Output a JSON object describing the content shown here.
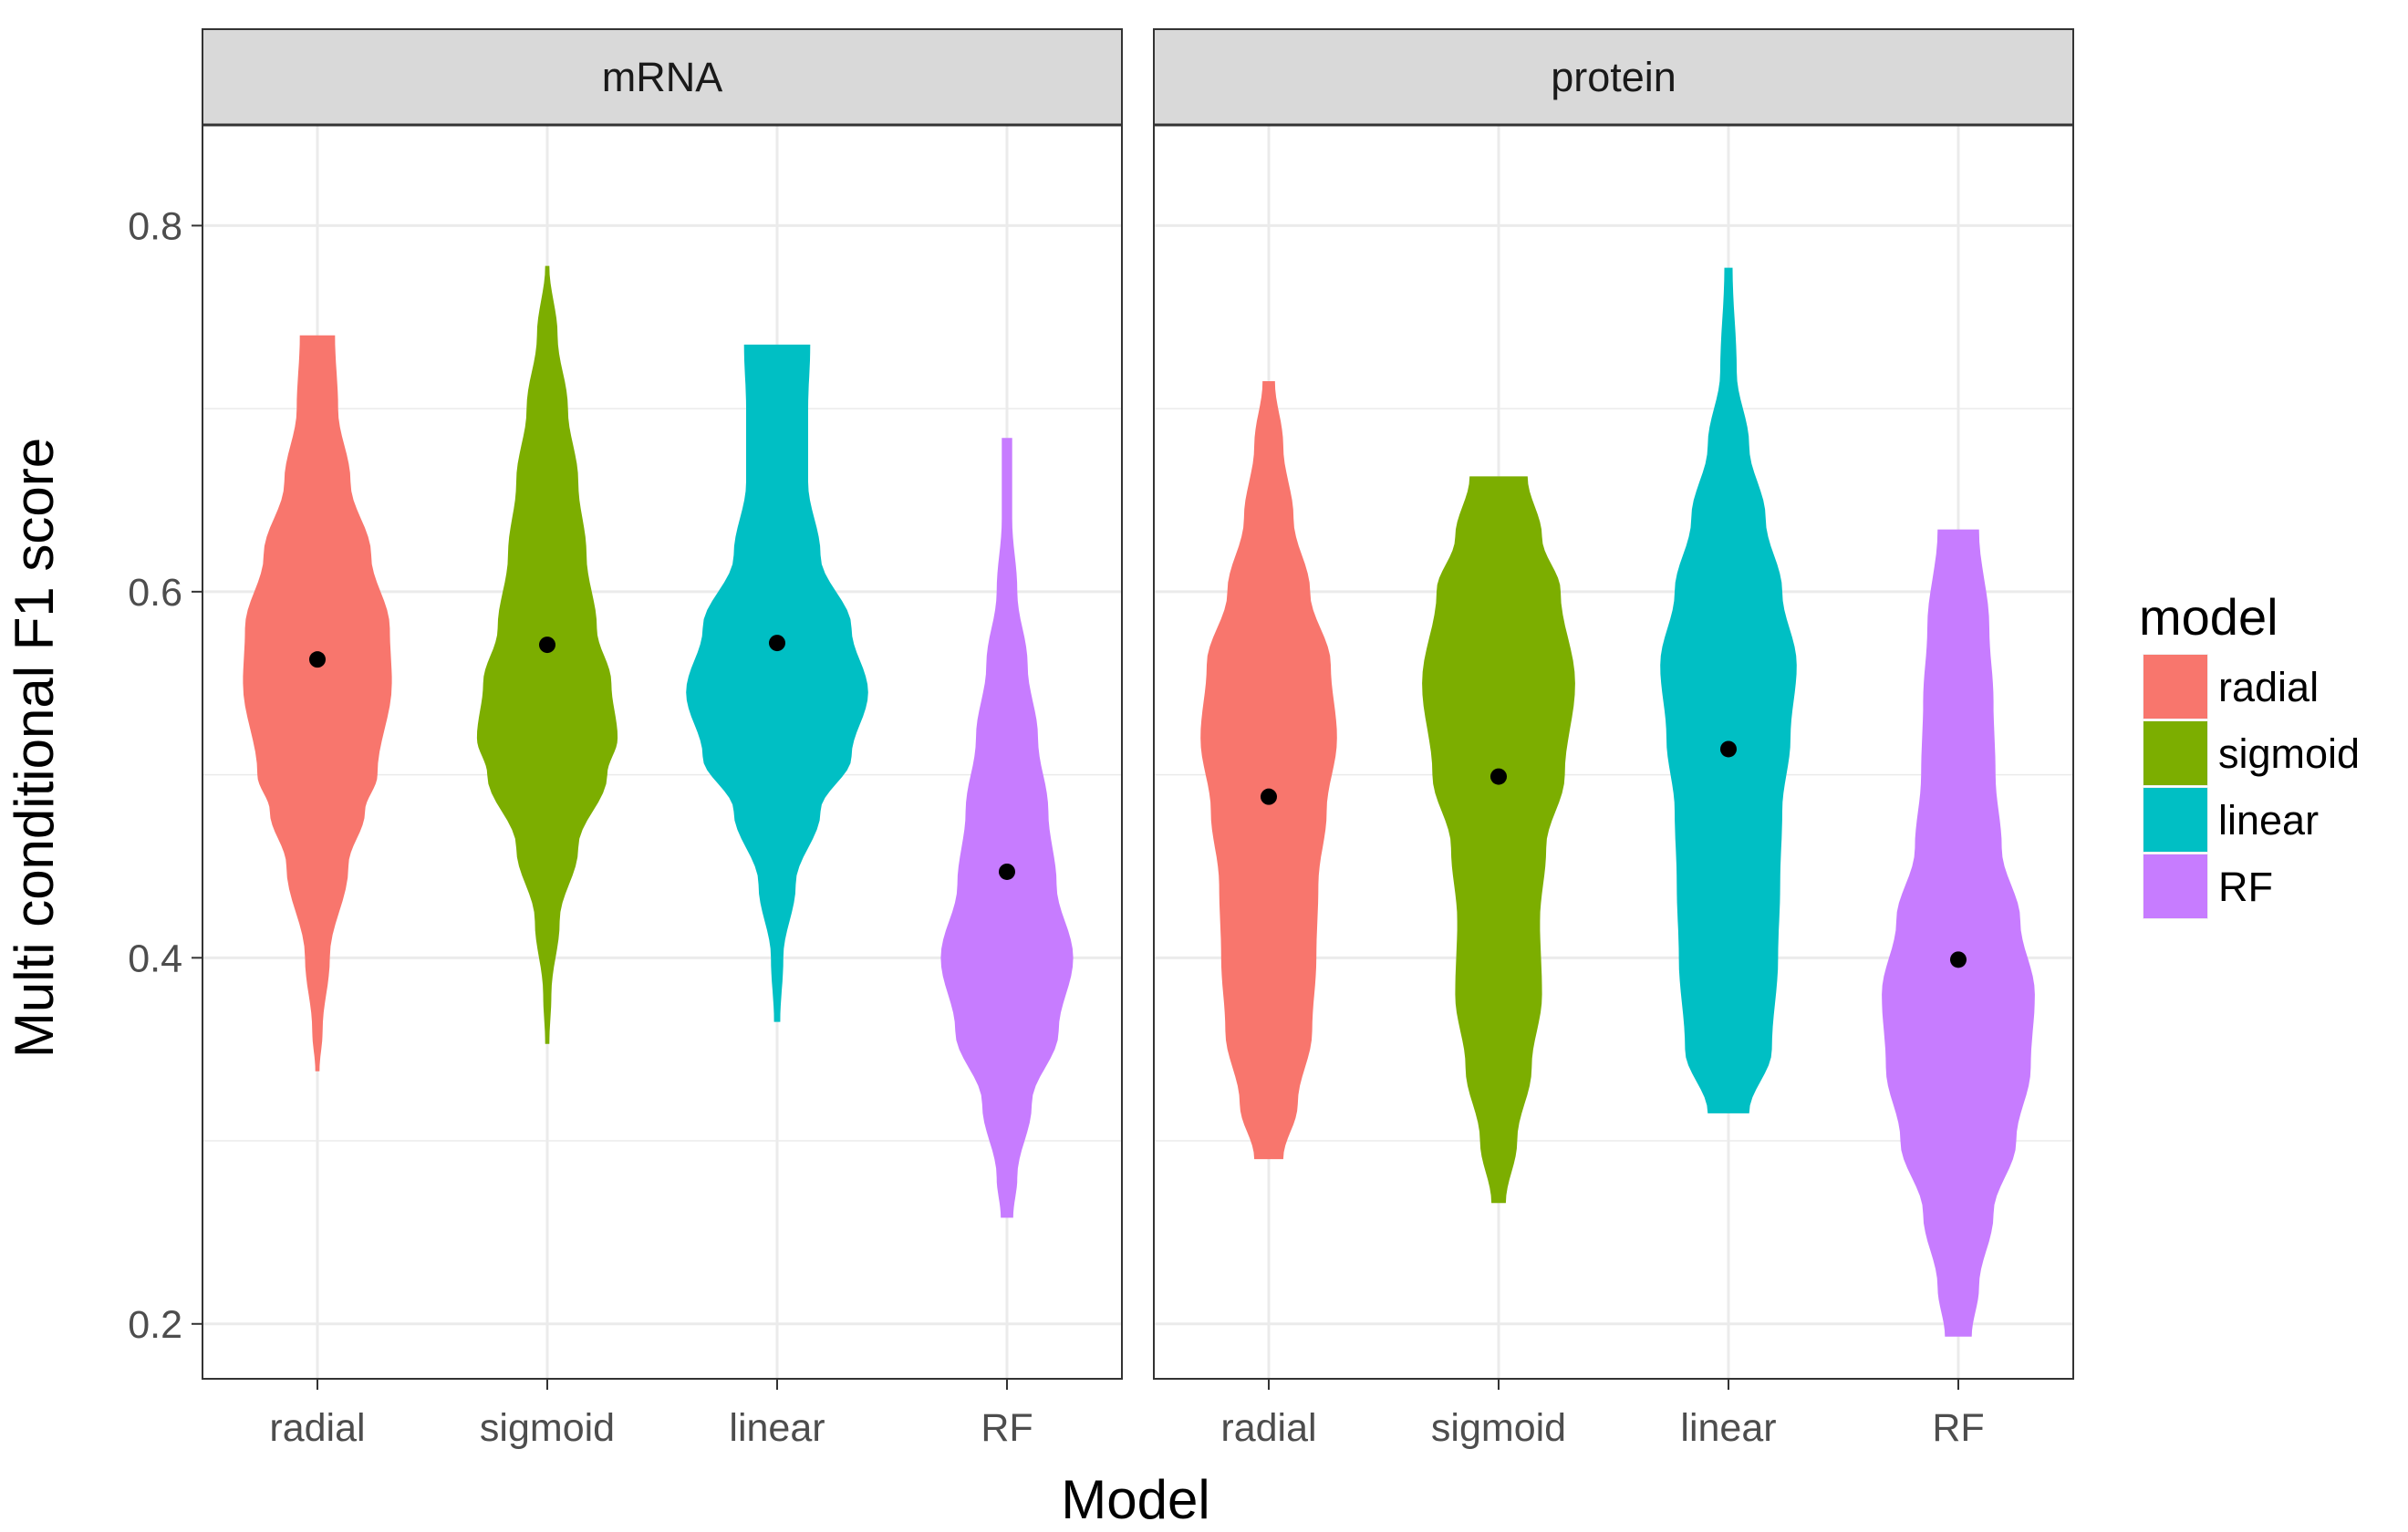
{
  "chart_data": {
    "type": "violin",
    "xlabel": "Model",
    "ylabel": "Multi conditional F1 score",
    "ylim": [
      0.17,
      0.855
    ],
    "y_ticks": [
      "0.2",
      "0.4",
      "0.6",
      "0.8"
    ],
    "y_tick_values": [
      0.2,
      0.4,
      0.6,
      0.8
    ],
    "categories": [
      "radial",
      "sigmoid",
      "linear",
      "RF"
    ],
    "grid": true,
    "legend": {
      "title": "model",
      "position": "right",
      "items": [
        {
          "label": "radial",
          "color": "#F8766D"
        },
        {
          "label": "sigmoid",
          "color": "#7CAE00"
        },
        {
          "label": "linear",
          "color": "#00BFC4"
        },
        {
          "label": "RF",
          "color": "#C77CFF"
        }
      ]
    },
    "facets": [
      {
        "label": "mRNA",
        "violins": [
          {
            "category": "radial",
            "min": 0.338,
            "max": 0.74,
            "median": 0.563,
            "profile": [
              [
                0.338,
                0.02
              ],
              [
                0.36,
                0.05
              ],
              [
                0.4,
                0.12
              ],
              [
                0.45,
                0.3
              ],
              [
                0.48,
                0.46
              ],
              [
                0.5,
                0.58
              ],
              [
                0.55,
                0.72
              ],
              [
                0.58,
                0.7
              ],
              [
                0.62,
                0.52
              ],
              [
                0.66,
                0.32
              ],
              [
                0.7,
                0.2
              ],
              [
                0.74,
                0.17
              ]
            ]
          },
          {
            "category": "sigmoid",
            "min": 0.353,
            "max": 0.778,
            "median": 0.571,
            "profile": [
              [
                0.353,
                0.02
              ],
              [
                0.38,
                0.04
              ],
              [
                0.42,
                0.12
              ],
              [
                0.46,
                0.3
              ],
              [
                0.5,
                0.58
              ],
              [
                0.52,
                0.68
              ],
              [
                0.55,
                0.62
              ],
              [
                0.58,
                0.48
              ],
              [
                0.62,
                0.38
              ],
              [
                0.66,
                0.3
              ],
              [
                0.7,
                0.2
              ],
              [
                0.74,
                0.1
              ],
              [
                0.778,
                0.02
              ]
            ]
          },
          {
            "category": "linear",
            "min": 0.365,
            "max": 0.735,
            "median": 0.572,
            "profile": [
              [
                0.365,
                0.03
              ],
              [
                0.4,
                0.06
              ],
              [
                0.44,
                0.18
              ],
              [
                0.48,
                0.42
              ],
              [
                0.51,
                0.72
              ],
              [
                0.545,
                0.88
              ],
              [
                0.58,
                0.72
              ],
              [
                0.62,
                0.42
              ],
              [
                0.66,
                0.3
              ],
              [
                0.7,
                0.3
              ],
              [
                0.735,
                0.32
              ]
            ]
          },
          {
            "category": "RF",
            "min": 0.258,
            "max": 0.684,
            "median": 0.447,
            "profile": [
              [
                0.258,
                0.06
              ],
              [
                0.28,
                0.1
              ],
              [
                0.32,
                0.24
              ],
              [
                0.36,
                0.5
              ],
              [
                0.4,
                0.64
              ],
              [
                0.44,
                0.48
              ],
              [
                0.48,
                0.4
              ],
              [
                0.52,
                0.3
              ],
              [
                0.56,
                0.2
              ],
              [
                0.6,
                0.1
              ],
              [
                0.64,
                0.05
              ],
              [
                0.684,
                0.05
              ]
            ]
          }
        ]
      },
      {
        "label": "protein",
        "violins": [
          {
            "category": "radial",
            "min": 0.29,
            "max": 0.715,
            "median": 0.488,
            "profile": [
              [
                0.29,
                0.14
              ],
              [
                0.32,
                0.28
              ],
              [
                0.36,
                0.42
              ],
              [
                0.4,
                0.46
              ],
              [
                0.44,
                0.48
              ],
              [
                0.48,
                0.56
              ],
              [
                0.52,
                0.66
              ],
              [
                0.56,
                0.6
              ],
              [
                0.6,
                0.4
              ],
              [
                0.64,
                0.24
              ],
              [
                0.68,
                0.14
              ],
              [
                0.715,
                0.06
              ]
            ]
          },
          {
            "category": "sigmoid",
            "min": 0.266,
            "max": 0.663,
            "median": 0.499,
            "profile": [
              [
                0.266,
                0.07
              ],
              [
                0.3,
                0.18
              ],
              [
                0.34,
                0.32
              ],
              [
                0.38,
                0.42
              ],
              [
                0.42,
                0.4
              ],
              [
                0.46,
                0.46
              ],
              [
                0.5,
                0.64
              ],
              [
                0.55,
                0.74
              ],
              [
                0.6,
                0.6
              ],
              [
                0.63,
                0.42
              ],
              [
                0.663,
                0.28
              ]
            ]
          },
          {
            "category": "linear",
            "min": 0.315,
            "max": 0.777,
            "median": 0.514,
            "profile": [
              [
                0.315,
                0.2
              ],
              [
                0.35,
                0.42
              ],
              [
                0.4,
                0.48
              ],
              [
                0.44,
                0.5
              ],
              [
                0.48,
                0.52
              ],
              [
                0.52,
                0.6
              ],
              [
                0.56,
                0.66
              ],
              [
                0.6,
                0.52
              ],
              [
                0.64,
                0.36
              ],
              [
                0.68,
                0.2
              ],
              [
                0.72,
                0.08
              ],
              [
                0.777,
                0.04
              ]
            ]
          },
          {
            "category": "RF",
            "min": 0.193,
            "max": 0.634,
            "median": 0.399,
            "profile": [
              [
                0.193,
                0.13
              ],
              [
                0.22,
                0.2
              ],
              [
                0.26,
                0.34
              ],
              [
                0.3,
                0.56
              ],
              [
                0.34,
                0.7
              ],
              [
                0.38,
                0.74
              ],
              [
                0.42,
                0.6
              ],
              [
                0.46,
                0.42
              ],
              [
                0.5,
                0.36
              ],
              [
                0.54,
                0.34
              ],
              [
                0.58,
                0.3
              ],
              [
                0.634,
                0.2
              ]
            ]
          }
        ]
      }
    ]
  }
}
